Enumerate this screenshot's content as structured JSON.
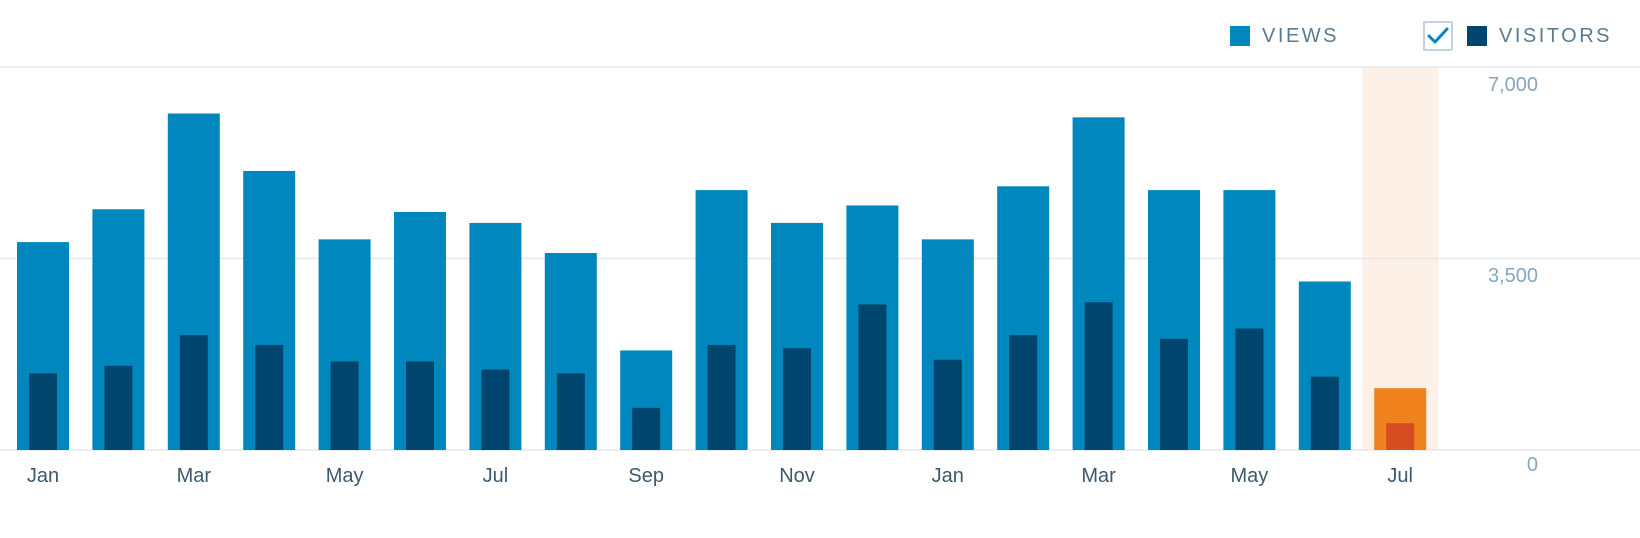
{
  "legend": {
    "views_label": "VIEWS",
    "visitors_label": "VISITORS",
    "visitors_checked": true
  },
  "colors": {
    "views": "#0087be",
    "visitors": "#00456e",
    "highlight_views": "#f0821e",
    "highlight_visitors": "#d54e21",
    "highlight_band": "#fdf0e7",
    "gridline": "#e3e9ee",
    "check": "#0087be"
  },
  "chart_data": {
    "type": "bar",
    "ylim": [
      0,
      7000
    ],
    "y_ticks": [
      "0",
      "3,500",
      "7,000"
    ],
    "y_tick_values": [
      0,
      3500,
      7000
    ],
    "x_tick_labels": [
      "Jan",
      "",
      "Mar",
      "",
      "May",
      "",
      "Jul",
      "",
      "Sep",
      "",
      "Nov",
      "",
      "Jan",
      "",
      "Mar",
      "",
      "May",
      "",
      "Jul"
    ],
    "highlight_index": 18,
    "series": [
      {
        "name": "VIEWS",
        "values": [
          3800,
          4400,
          6150,
          5100,
          3850,
          4350,
          4150,
          3600,
          1820,
          4750,
          4150,
          4470,
          3850,
          4820,
          6080,
          4750,
          4750,
          3080,
          1130
        ]
      },
      {
        "name": "VISITORS",
        "values": [
          1400,
          1540,
          2100,
          1920,
          1620,
          1620,
          1470,
          1400,
          770,
          1920,
          1860,
          2660,
          1650,
          2100,
          2700,
          2030,
          2220,
          1340,
          490
        ]
      }
    ]
  }
}
